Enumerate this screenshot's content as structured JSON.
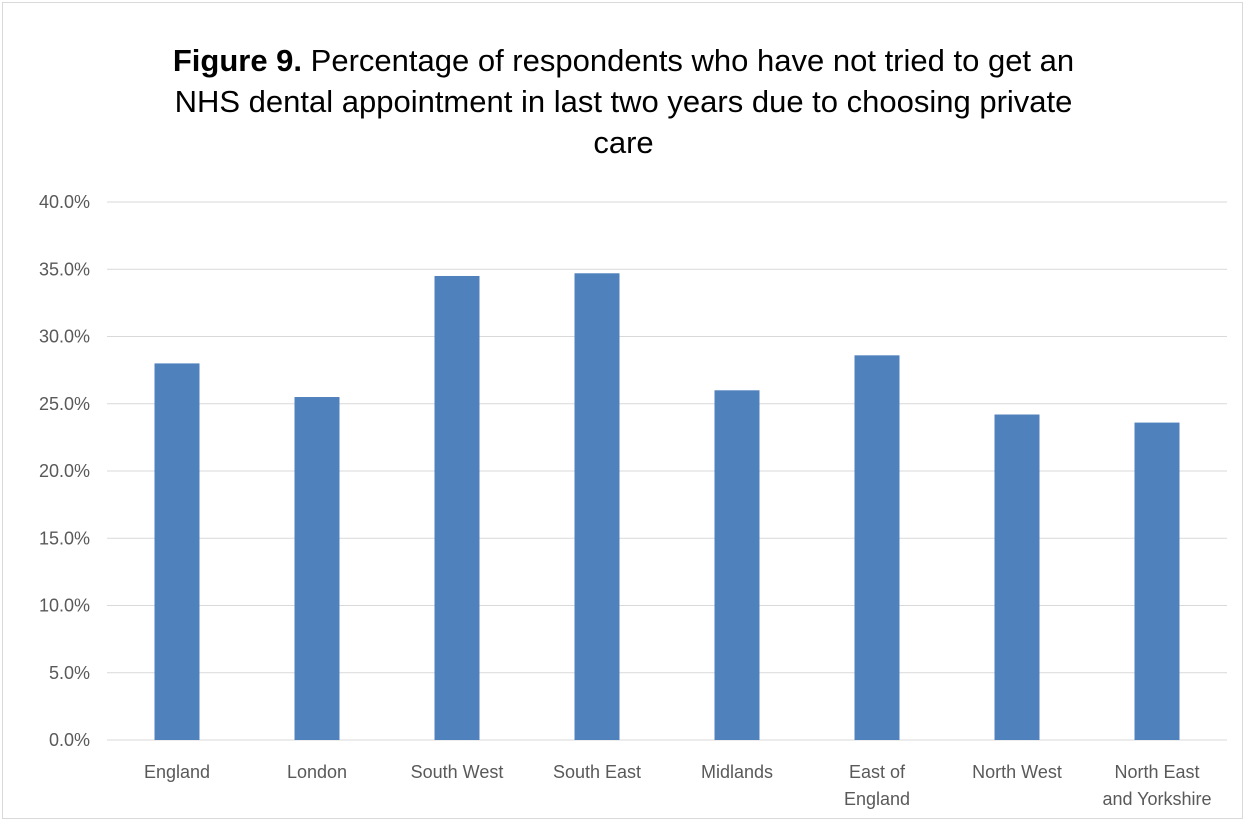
{
  "chart_data": {
    "type": "bar",
    "title_prefix": "Figure 9.",
    "title": "Percentage of respondents who have not tried to get an NHS dental appointment in last two years due to choosing private care",
    "xlabel": "",
    "ylabel": "",
    "categories": [
      "England",
      "London",
      "South West",
      "South East",
      "Midlands",
      "East of England",
      "North West",
      "North East and Yorkshire"
    ],
    "category_lines": [
      [
        "England"
      ],
      [
        "London"
      ],
      [
        "South West"
      ],
      [
        "South East"
      ],
      [
        "Midlands"
      ],
      [
        "East of",
        "England"
      ],
      [
        "North West"
      ],
      [
        "North East",
        "and Yorkshire"
      ]
    ],
    "values": [
      28.0,
      25.5,
      34.5,
      34.7,
      26.0,
      28.6,
      24.2,
      23.6
    ],
    "ylim": [
      0,
      40
    ],
    "yticks": [
      0,
      5,
      10,
      15,
      20,
      25,
      30,
      35,
      40
    ],
    "ytick_labels": [
      "0.0%",
      "5.0%",
      "10.0%",
      "15.0%",
      "20.0%",
      "25.0%",
      "30.0%",
      "35.0%",
      "40.0%"
    ],
    "bar_color": "#4f81bd",
    "grid_color": "#d9d9d9",
    "grid": true,
    "legend": "none"
  }
}
